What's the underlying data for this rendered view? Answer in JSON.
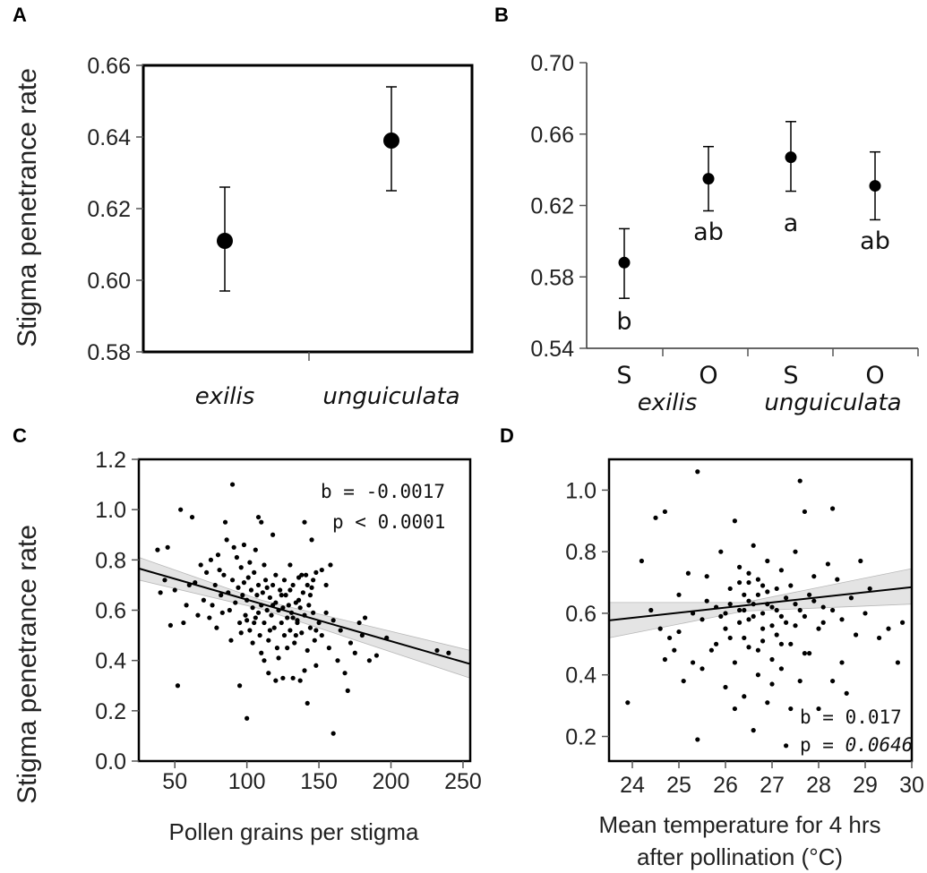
{
  "y_axis_label": "Stigma penetrance rate",
  "chart_data": [
    {
      "panel": "A",
      "type": "scatter",
      "categories": [
        "exilis",
        "unguiculata"
      ],
      "means": [
        0.611,
        0.639
      ],
      "error_low": [
        0.597,
        0.625
      ],
      "error_high": [
        0.626,
        0.654
      ],
      "ylim": [
        0.58,
        0.66
      ],
      "yticks": [
        "0.58",
        "0.60",
        "0.62",
        "0.64",
        "0.66"
      ]
    },
    {
      "panel": "B",
      "type": "scatter",
      "categories": [
        "S",
        "O",
        "S",
        "O"
      ],
      "groups": [
        "exilis",
        "unguiculata"
      ],
      "means": [
        0.588,
        0.635,
        0.647,
        0.631
      ],
      "error_low": [
        0.568,
        0.617,
        0.628,
        0.612
      ],
      "error_high": [
        0.607,
        0.653,
        0.667,
        0.65
      ],
      "letters": [
        "b",
        "ab",
        "a",
        "ab"
      ],
      "ylim": [
        0.54,
        0.7
      ],
      "yticks": [
        "0.54",
        "0.58",
        "0.62",
        "0.66",
        "0.70"
      ]
    },
    {
      "panel": "C",
      "type": "scatter",
      "xlabel": "Pollen grains per stigma",
      "xlim": [
        25,
        255
      ],
      "ylim": [
        0.0,
        1.2
      ],
      "xticks": [
        "50",
        "100",
        "150",
        "200",
        "250"
      ],
      "yticks": [
        "0.0",
        "0.2",
        "0.4",
        "0.6",
        "0.8",
        "1.0",
        "1.2"
      ],
      "annotation": [
        "b = -0.0017",
        "p < 0.0001"
      ],
      "fit": {
        "x": [
          25,
          255
        ],
        "y": [
          0.766,
          0.386
        ]
      },
      "ci_band": {
        "x": [
          25,
          110,
          255
        ],
        "lower": [
          0.72,
          0.605,
          0.33
        ],
        "upper": [
          0.81,
          0.64,
          0.44
        ]
      },
      "points": [
        [
          62,
          0.97
        ],
        [
          68,
          0.78
        ],
        [
          72,
          0.75
        ],
        [
          75,
          0.8
        ],
        [
          78,
          0.7
        ],
        [
          80,
          0.82
        ],
        [
          82,
          0.66
        ],
        [
          84,
          0.74
        ],
        [
          85,
          0.95
        ],
        [
          86,
          0.88
        ],
        [
          88,
          0.6
        ],
        [
          90,
          0.72
        ],
        [
          91,
          0.85
        ],
        [
          92,
          0.63
        ],
        [
          94,
          0.69
        ],
        [
          95,
          0.55
        ],
        [
          96,
          0.77
        ],
        [
          97,
          0.66
        ],
        [
          98,
          0.71
        ],
        [
          99,
          0.58
        ],
        [
          100,
          0.64
        ],
        [
          101,
          0.73
        ],
        [
          102,
          0.52
        ],
        [
          103,
          0.68
        ],
        [
          104,
          0.61
        ],
        [
          105,
          0.75
        ],
        [
          106,
          0.57
        ],
        [
          107,
          0.66
        ],
        [
          108,
          0.7
        ],
        [
          109,
          0.5
        ],
        [
          110,
          0.62
        ],
        [
          111,
          0.67
        ],
        [
          112,
          0.55
        ],
        [
          113,
          0.72
        ],
        [
          114,
          0.6
        ],
        [
          115,
          0.48
        ],
        [
          116,
          0.65
        ],
        [
          117,
          0.58
        ],
        [
          118,
          0.7
        ],
        [
          119,
          0.53
        ],
        [
          120,
          0.63
        ],
        [
          121,
          0.45
        ],
        [
          122,
          0.6
        ],
        [
          123,
          0.68
        ],
        [
          124,
          0.55
        ],
        [
          125,
          0.61
        ],
        [
          126,
          0.5
        ],
        [
          127,
          0.66
        ],
        [
          128,
          0.57
        ],
        [
          129,
          0.62
        ],
        [
          130,
          0.52
        ],
        [
          131,
          0.59
        ],
        [
          132,
          0.7
        ],
        [
          133,
          0.47
        ],
        [
          134,
          0.63
        ],
        [
          135,
          0.56
        ],
        [
          136,
          0.73
        ],
        [
          137,
          0.61
        ],
        [
          138,
          0.51
        ],
        [
          139,
          0.67
        ],
        [
          140,
          0.58
        ],
        [
          141,
          0.74
        ],
        [
          142,
          0.44
        ],
        [
          143,
          0.62
        ],
        [
          144,
          0.53
        ],
        [
          145,
          0.69
        ],
        [
          146,
          0.59
        ],
        [
          147,
          0.48
        ],
        [
          148,
          0.75
        ],
        [
          150,
          0.55
        ],
        [
          64,
          0.71
        ],
        [
          66,
          0.58
        ],
        [
          70,
          0.64
        ],
        [
          74,
          0.57
        ],
        [
          76,
          0.62
        ],
        [
          79,
          0.53
        ],
        [
          81,
          0.76
        ],
        [
          83,
          0.59
        ],
        [
          87,
          0.67
        ],
        [
          89,
          0.48
        ],
        [
          93,
          0.81
        ],
        [
          96,
          0.51
        ],
        [
          98,
          0.86
        ],
        [
          100,
          0.56
        ],
        [
          102,
          0.79
        ],
        [
          104,
          0.47
        ],
        [
          106,
          0.84
        ],
        [
          108,
          0.59
        ],
        [
          110,
          0.43
        ],
        [
          112,
          0.78
        ],
        [
          114,
          0.69
        ],
        [
          116,
          0.52
        ],
        [
          118,
          0.62
        ],
        [
          120,
          0.74
        ],
        [
          122,
          0.41
        ],
        [
          124,
          0.66
        ],
        [
          126,
          0.72
        ],
        [
          128,
          0.45
        ],
        [
          130,
          0.68
        ],
        [
          132,
          0.57
        ],
        [
          134,
          0.5
        ],
        [
          136,
          0.64
        ],
        [
          138,
          0.74
        ],
        [
          140,
          0.36
        ],
        [
          142,
          0.7
        ],
        [
          144,
          0.66
        ],
        [
          146,
          0.72
        ],
        [
          148,
          0.52
        ],
        [
          152,
          0.76
        ],
        [
          155,
          0.7
        ],
        [
          158,
          0.78
        ],
        [
          38,
          0.84
        ],
        [
          40,
          0.67
        ],
        [
          43,
          0.72
        ],
        [
          45,
          0.85
        ],
        [
          47,
          0.54
        ],
        [
          50,
          0.68
        ],
        [
          52,
          0.3
        ],
        [
          54,
          1.0
        ],
        [
          56,
          0.55
        ],
        [
          58,
          0.62
        ],
        [
          60,
          0.7
        ],
        [
          90,
          1.1
        ],
        [
          95,
          0.3
        ],
        [
          100,
          0.17
        ],
        [
          105,
          0.55
        ],
        [
          108,
          0.97
        ],
        [
          110,
          0.95
        ],
        [
          112,
          0.4
        ],
        [
          115,
          0.35
        ],
        [
          118,
          0.9
        ],
        [
          120,
          0.32
        ],
        [
          125,
          0.33
        ],
        [
          130,
          0.78
        ],
        [
          132,
          0.33
        ],
        [
          135,
          0.55
        ],
        [
          137,
          0.32
        ],
        [
          140,
          0.95
        ],
        [
          142,
          0.23
        ],
        [
          145,
          0.88
        ],
        [
          148,
          0.38
        ],
        [
          152,
          0.5
        ],
        [
          155,
          0.59
        ],
        [
          157,
          0.45
        ],
        [
          160,
          0.11
        ],
        [
          160,
          0.56
        ],
        [
          163,
          0.4
        ],
        [
          165,
          0.52
        ],
        [
          168,
          0.35
        ],
        [
          170,
          0.28
        ],
        [
          172,
          0.47
        ],
        [
          175,
          0.43
        ],
        [
          178,
          0.55
        ],
        [
          180,
          0.5
        ],
        [
          182,
          0.57
        ],
        [
          185,
          0.4
        ],
        [
          190,
          0.42
        ],
        [
          197,
          0.49
        ],
        [
          232,
          0.44
        ],
        [
          240,
          0.43
        ]
      ]
    },
    {
      "panel": "D",
      "type": "scatter",
      "xlabel": [
        "Mean temperature for 4 hrs",
        "after pollination (°C)"
      ],
      "xlim": [
        23.5,
        30.0
      ],
      "ylim": [
        0.12,
        1.1
      ],
      "xticks": [
        "24",
        "25",
        "26",
        "27",
        "28",
        "29",
        "30"
      ],
      "yticks": [
        "0.2",
        "0.4",
        "0.6",
        "0.8",
        "1.0"
      ],
      "annotation": [
        "b = 0.017",
        "p = ",
        "0.0646"
      ],
      "fit": {
        "x": [
          23.5,
          30.0
        ],
        "y": [
          0.577,
          0.685
        ]
      },
      "ci_band": {
        "x": [
          23.5,
          26.4,
          30.0
        ],
        "lower": [
          0.52,
          0.607,
          0.63
        ],
        "upper": [
          0.635,
          0.635,
          0.745
        ]
      },
      "points": [
        [
          23.9,
          0.31
        ],
        [
          24.2,
          0.77
        ],
        [
          24.5,
          0.91
        ],
        [
          24.7,
          0.93
        ],
        [
          24.4,
          0.61
        ],
        [
          24.6,
          0.55
        ],
        [
          24.8,
          0.52
        ],
        [
          25.0,
          0.66
        ],
        [
          25.2,
          0.73
        ],
        [
          25.3,
          0.44
        ],
        [
          25.4,
          1.06
        ],
        [
          25.4,
          0.19
        ],
        [
          25.5,
          0.58
        ],
        [
          25.6,
          0.72
        ],
        [
          25.7,
          0.48
        ],
        [
          25.8,
          0.62
        ],
        [
          25.9,
          0.8
        ],
        [
          26.0,
          0.55
        ],
        [
          26.1,
          0.68
        ],
        [
          26.2,
          0.44
        ],
        [
          26.2,
          0.9
        ],
        [
          26.3,
          0.61
        ],
        [
          26.3,
          0.75
        ],
        [
          26.4,
          0.52
        ],
        [
          26.4,
          0.66
        ],
        [
          26.5,
          0.7
        ],
        [
          26.5,
          0.58
        ],
        [
          26.6,
          0.82
        ],
        [
          26.6,
          0.63
        ],
        [
          26.7,
          0.48
        ],
        [
          26.7,
          0.71
        ],
        [
          26.8,
          0.6
        ],
        [
          26.8,
          0.55
        ],
        [
          26.9,
          0.67
        ],
        [
          26.9,
          0.77
        ],
        [
          27.0,
          0.45
        ],
        [
          27.0,
          0.62
        ],
        [
          27.1,
          0.68
        ],
        [
          27.1,
          0.53
        ],
        [
          27.2,
          0.74
        ],
        [
          27.2,
          0.59
        ],
        [
          27.3,
          0.65
        ],
        [
          27.3,
          0.17
        ],
        [
          27.4,
          0.5
        ],
        [
          27.4,
          0.69
        ],
        [
          27.5,
          0.56
        ],
        [
          27.5,
          0.8
        ],
        [
          27.6,
          0.61
        ],
        [
          27.6,
          1.03
        ],
        [
          27.7,
          0.93
        ],
        [
          27.7,
          0.47
        ],
        [
          27.8,
          0.66
        ],
        [
          27.9,
          0.72
        ],
        [
          28.0,
          0.55
        ],
        [
          28.1,
          0.62
        ],
        [
          28.2,
          0.76
        ],
        [
          28.3,
          0.94
        ],
        [
          28.3,
          0.38
        ],
        [
          28.4,
          0.71
        ],
        [
          28.5,
          0.58
        ],
        [
          28.6,
          0.34
        ],
        [
          28.7,
          0.65
        ],
        [
          28.8,
          0.53
        ],
        [
          28.9,
          0.77
        ],
        [
          29.0,
          0.6
        ],
        [
          29.1,
          0.68
        ],
        [
          29.3,
          0.52
        ],
        [
          29.5,
          0.55
        ],
        [
          29.7,
          0.44
        ],
        [
          29.8,
          0.57
        ],
        [
          25.1,
          0.38
        ],
        [
          25.5,
          0.42
        ],
        [
          25.8,
          0.5
        ],
        [
          26.0,
          0.36
        ],
        [
          26.2,
          0.29
        ],
        [
          26.4,
          0.33
        ],
        [
          26.6,
          0.22
        ],
        [
          26.7,
          0.4
        ],
        [
          26.9,
          0.31
        ],
        [
          27.0,
          0.37
        ],
        [
          27.2,
          0.42
        ],
        [
          27.4,
          0.29
        ],
        [
          27.6,
          0.38
        ],
        [
          27.8,
          0.47
        ],
        [
          28.0,
          0.29
        ],
        [
          28.5,
          0.44
        ],
        [
          26.1,
          0.63
        ],
        [
          26.3,
          0.57
        ],
        [
          26.5,
          0.64
        ],
        [
          26.7,
          0.66
        ],
        [
          26.8,
          0.69
        ],
        [
          26.3,
          0.7
        ],
        [
          26.5,
          0.73
        ],
        [
          26.0,
          0.6
        ],
        [
          26.4,
          0.61
        ],
        [
          26.6,
          0.59
        ],
        [
          26.9,
          0.63
        ],
        [
          27.1,
          0.61
        ],
        [
          27.3,
          0.57
        ],
        [
          27.5,
          0.63
        ],
        [
          27.7,
          0.59
        ],
        [
          27.9,
          0.64
        ],
        [
          28.1,
          0.57
        ],
        [
          28.3,
          0.61
        ],
        [
          25.6,
          0.64
        ],
        [
          25.9,
          0.59
        ],
        [
          25.3,
          0.6
        ],
        [
          25.0,
          0.54
        ],
        [
          24.9,
          0.48
        ],
        [
          24.7,
          0.45
        ],
        [
          26.1,
          0.52
        ],
        [
          26.5,
          0.49
        ],
        [
          26.8,
          0.51
        ],
        [
          27.0,
          0.56
        ],
        [
          27.2,
          0.5
        ]
      ]
    }
  ]
}
